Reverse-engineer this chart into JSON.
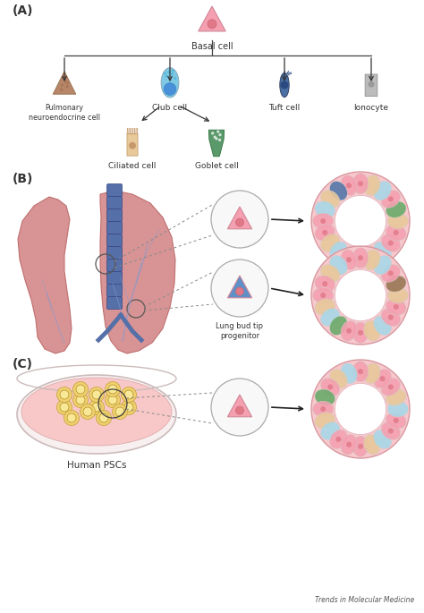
{
  "background_color": "#ffffff",
  "panel_A_label": "(A)",
  "panel_B_label": "(B)",
  "panel_C_label": "(C)",
  "basal_cell_label": "Basal cell",
  "cell_labels": [
    "Pulmonary\nneuroendocrine cell",
    "Club cell",
    "Tuft cell",
    "Ionocyte"
  ],
  "sub_cell_labels": [
    "Ciliated cell",
    "Goblet cell"
  ],
  "lung_bud_label": "Lung bud tip\nprogenitor",
  "human_psc_label": "Human PSCs",
  "trends_label": "Trends in Molecular Medicine",
  "basal_color": "#f4a0b0",
  "pnec_color": "#b8876a",
  "club_color": "#7ec8e3",
  "tuft_color": "#4a6fa5",
  "ionocyte_color": "#bbbbbb",
  "ciliated_color": "#e8c99a",
  "goblet_color": "#5a9a6a",
  "pink_cell_color": "#f4a0b0",
  "blue_cell_color": "#6090c8",
  "lung_color": "#d4888a",
  "lung_edge": "#bb6666",
  "trachea_color": "#5570a8",
  "organoid_outer_pink": "#f8c8cc",
  "organoid_inner_white": "#ffffff",
  "organoid_cell_pink": "#f4a0b0",
  "organoid_cell_blue": "#a8d8e8",
  "organoid_cell_tan": "#e8c89a",
  "organoid_cell_green": "#6aaa6a",
  "organoid_cell_darkblue": "#5577aa",
  "organoid_cell_brown": "#997755"
}
